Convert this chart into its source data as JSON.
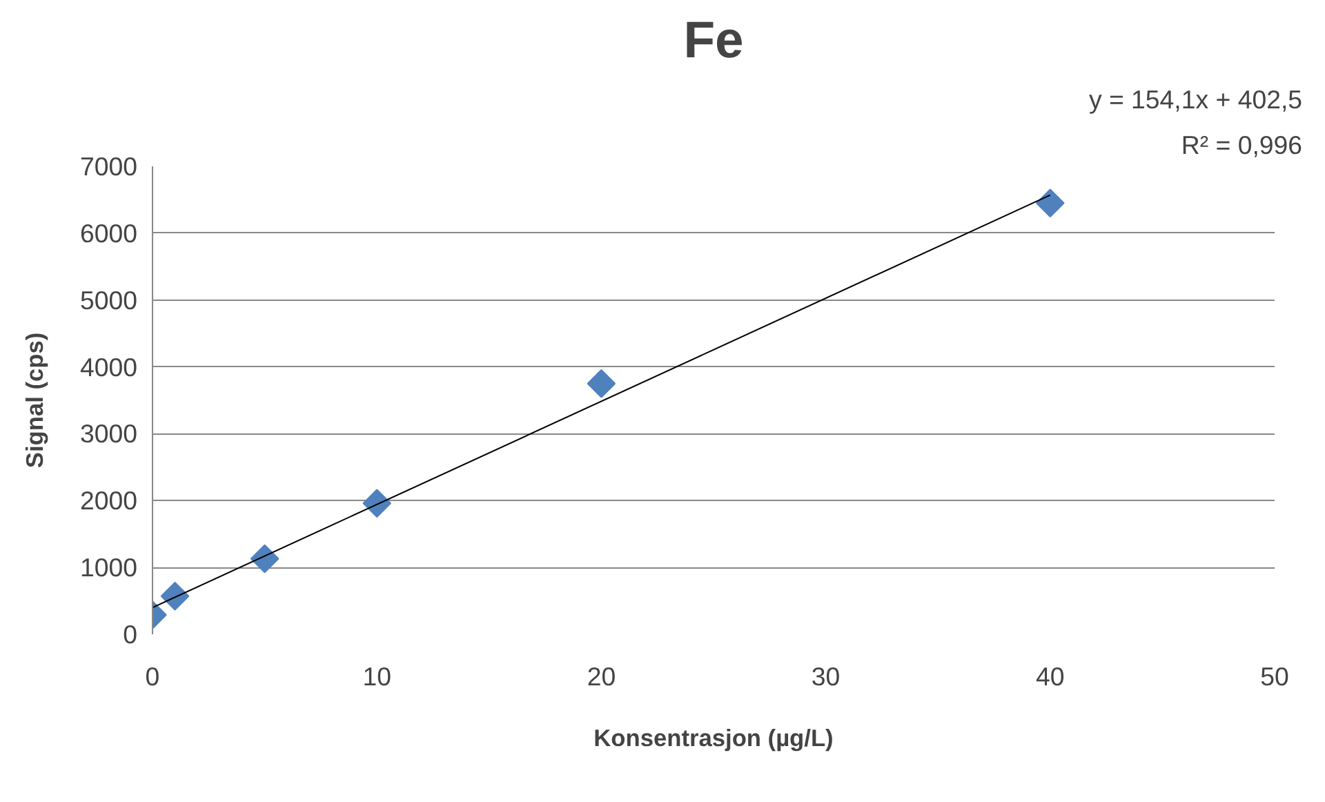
{
  "chart_data": {
    "type": "scatter",
    "title": "Fe",
    "xlabel": "Konsentrasjon (µg/L)",
    "ylabel": "Signal (cps)",
    "annotations": [
      "y = 154,1x + 402,5",
      "R² = 0,996"
    ],
    "xlim": [
      0,
      50
    ],
    "xticks": [
      0,
      10,
      20,
      30,
      40,
      50
    ],
    "ylim": [
      0,
      7000
    ],
    "yticks": [
      0,
      1000,
      2000,
      3000,
      4000,
      5000,
      6000,
      7000
    ],
    "grid": "y",
    "marker": "diamond",
    "series": [
      {
        "color": "#4f81bd",
        "x": [
          0,
          1,
          5,
          10,
          20,
          40
        ],
        "values": [
          290,
          570,
          1130,
          1960,
          3750,
          6450
        ]
      },
      {
        "type": "line",
        "color": "#000000",
        "marker": "none",
        "line_style": "solid",
        "x": [
          0,
          40
        ],
        "values": [
          400,
          6570
        ]
      }
    ]
  }
}
